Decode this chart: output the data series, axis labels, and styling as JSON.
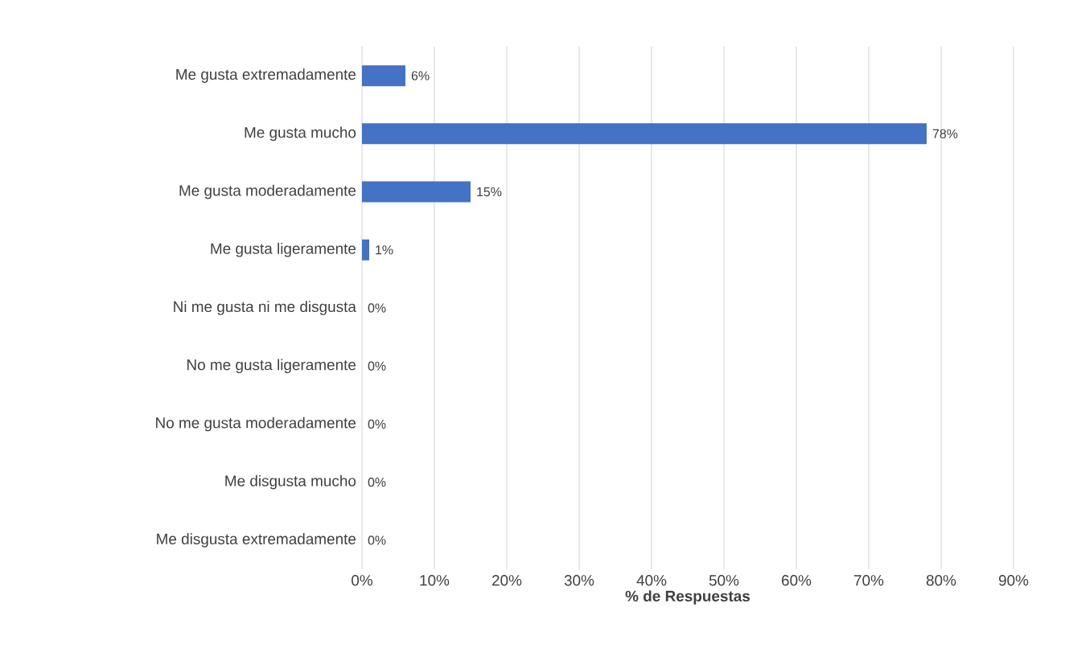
{
  "chart_data": {
    "type": "bar",
    "orientation": "horizontal",
    "xlabel": "% de Respuestas",
    "categories": [
      "Me gusta extremadamente",
      "Me gusta mucho",
      "Me gusta moderadamente",
      "Me gusta ligeramente",
      "Ni me gusta ni me disgusta",
      "No me gusta ligeramente",
      "No me gusta moderadamente",
      "Me disgusta mucho",
      "Me disgusta extremadamente"
    ],
    "values": [
      6,
      78,
      15,
      1,
      0,
      0,
      0,
      0,
      0
    ],
    "value_labels": [
      "6%",
      "78%",
      "15%",
      "1%",
      "0%",
      "0%",
      "0%",
      "0%",
      "0%"
    ],
    "color": "#4472c4",
    "xlim": [
      0,
      90
    ],
    "xticks": [
      {
        "value": 0,
        "label": "0%"
      },
      {
        "value": 10,
        "label": "10%"
      },
      {
        "value": 20,
        "label": "20%"
      },
      {
        "value": 30,
        "label": "30%"
      },
      {
        "value": 40,
        "label": "40%"
      },
      {
        "value": 50,
        "label": "50%"
      },
      {
        "value": 60,
        "label": "60%"
      },
      {
        "value": 70,
        "label": "70%"
      },
      {
        "value": 80,
        "label": "80%"
      },
      {
        "value": 90,
        "label": "90%"
      }
    ],
    "grid": "x"
  }
}
